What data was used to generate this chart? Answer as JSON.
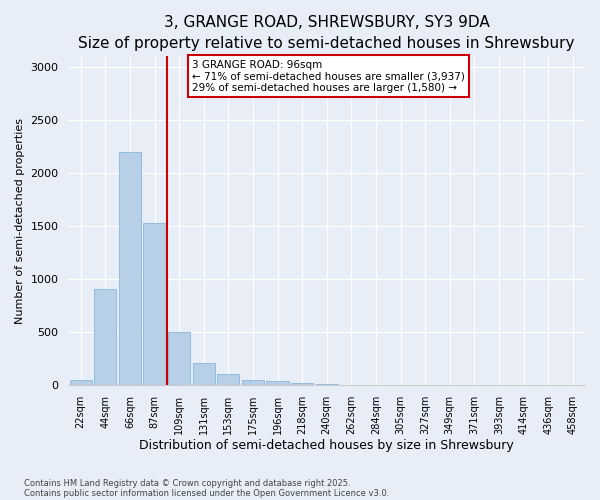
{
  "title": "3, GRANGE ROAD, SHREWSBURY, SY3 9DA",
  "subtitle": "Size of property relative to semi-detached houses in Shrewsbury",
  "xlabel": "Distribution of semi-detached houses by size in Shrewsbury",
  "ylabel": "Number of semi-detached properties",
  "categories": [
    "22sqm",
    "44sqm",
    "66sqm",
    "87sqm",
    "109sqm",
    "131sqm",
    "153sqm",
    "175sqm",
    "196sqm",
    "218sqm",
    "240sqm",
    "262sqm",
    "284sqm",
    "305sqm",
    "327sqm",
    "349sqm",
    "371sqm",
    "393sqm",
    "414sqm",
    "436sqm",
    "458sqm"
  ],
  "values": [
    50,
    900,
    2200,
    1530,
    500,
    210,
    105,
    50,
    35,
    15,
    5,
    0,
    0,
    0,
    0,
    0,
    0,
    0,
    0,
    0,
    0
  ],
  "bar_color": "#b8cfe8",
  "bar_edge_color": "#7aafd4",
  "vline_pos": 3.5,
  "vline_color": "#cc0000",
  "annotation_title": "3 GRANGE ROAD: 96sqm",
  "annotation_line1": "← 71% of semi-detached houses are smaller (3,937)",
  "annotation_line2": "29% of semi-detached houses are larger (1,580) →",
  "annotation_box_edge_color": "#cc0000",
  "ylim": [
    0,
    3100
  ],
  "yticks": [
    0,
    500,
    1000,
    1500,
    2000,
    2500,
    3000
  ],
  "footer_line1": "Contains HM Land Registry data © Crown copyright and database right 2025.",
  "footer_line2": "Contains public sector information licensed under the Open Government Licence v3.0.",
  "bg_color": "#e8eef8",
  "grid_color": "#ffffff",
  "title_fontsize": 11,
  "subtitle_fontsize": 9,
  "ylabel_fontsize": 8,
  "xlabel_fontsize": 9
}
